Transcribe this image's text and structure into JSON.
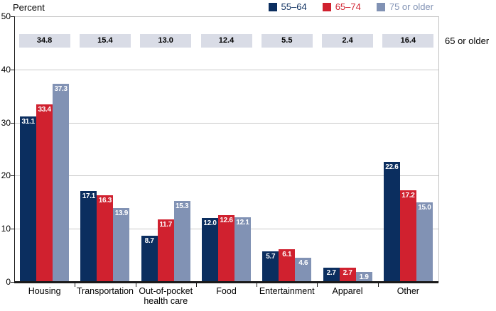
{
  "chart_data": {
    "type": "bar",
    "title": "",
    "ylabel": "Percent",
    "xlabel": "",
    "ylim": [
      0,
      50
    ],
    "yticks": [
      0,
      10,
      20,
      30,
      40,
      50
    ],
    "grid": true,
    "legend_position": "top-right",
    "categories": [
      "Housing",
      "Transportation",
      "Out-of-pocket\nhealth care",
      "Food",
      "Entertainment",
      "Apparel",
      "Other"
    ],
    "series": [
      {
        "name": "55–64",
        "color": "#0b2e5f",
        "values": [
          31.1,
          17.1,
          8.7,
          12.0,
          5.7,
          2.7,
          22.6
        ]
      },
      {
        "name": "65–74",
        "color": "#d0212f",
        "values": [
          33.4,
          16.3,
          11.7,
          12.6,
          6.1,
          2.7,
          17.2
        ]
      },
      {
        "name": "75 or older",
        "color": "#8192b4",
        "values": [
          37.3,
          13.9,
          15.3,
          12.1,
          4.6,
          1.9,
          15.0
        ]
      }
    ],
    "annotation_band": {
      "label": "65 or older",
      "values": [
        34.8,
        15.4,
        13.0,
        12.4,
        5.5,
        2.4,
        16.4
      ],
      "box_color": "#d9dce6"
    }
  },
  "colors": {
    "axis": "#1a1a1a",
    "gridline": "#c9c9c9",
    "plot_border": "#c2c2c2",
    "background": "#ffffff",
    "bar_label_text": "#ffffff",
    "band_text": "#000000"
  }
}
